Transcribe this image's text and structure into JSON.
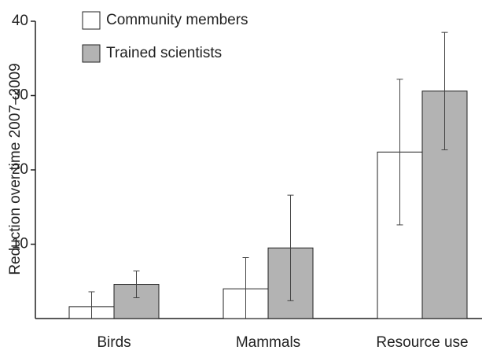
{
  "chart_data": {
    "type": "bar",
    "y_label": "Reduction over time 2007–2009",
    "categories": [
      "Birds",
      "Mammals",
      "Resource use"
    ],
    "series": [
      {
        "name": "Community members",
        "color": "#ffffff",
        "values": [
          1.6,
          4.0,
          22.4
        ],
        "errors": [
          2.0,
          4.2,
          9.8
        ]
      },
      {
        "name": "Trained scientists",
        "color": "#b3b3b3",
        "values": [
          4.6,
          9.5,
          30.6
        ],
        "errors": [
          1.8,
          7.1,
          7.9
        ]
      }
    ],
    "ylim": [
      0,
      40
    ],
    "yticks": [
      10,
      20,
      30,
      40
    ],
    "legend": "upper left"
  }
}
